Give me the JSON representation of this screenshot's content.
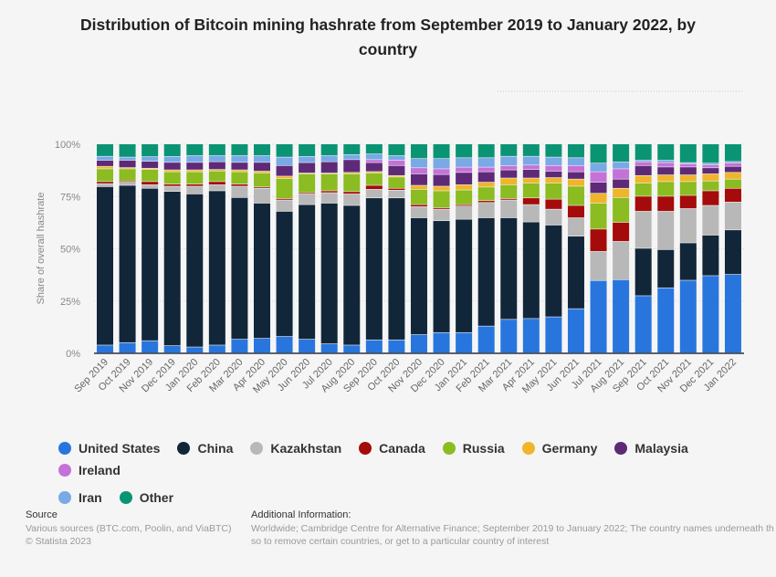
{
  "chart_data": {
    "type": "bar",
    "stacked": true,
    "title": "Distribution of Bitcoin mining hashrate from September 2019 to January 2022, by country",
    "xlabel": "",
    "ylabel": "Share of overall hashrate",
    "ylim": [
      0,
      100
    ],
    "yticks": [
      "0%",
      "25%",
      "50%",
      "75%",
      "100%"
    ],
    "grid": true,
    "legend_position": "bottom",
    "categories": [
      "Sep 2019",
      "Oct 2019",
      "Nov 2019",
      "Dec 2019",
      "Jan 2020",
      "Feb 2020",
      "Mar 2020",
      "Apr 2020",
      "May 2020",
      "Jun 2020",
      "Jul 2020",
      "Aug 2020",
      "Sep 2020",
      "Oct 2020",
      "Nov 2020",
      "Dec 2020",
      "Jan 2021",
      "Feb 2021",
      "Mar 2021",
      "Apr 2021",
      "May 2021",
      "Jun 2021",
      "Jul 2021",
      "Aug 2021",
      "Sep 2021",
      "Oct 2021",
      "Nov 2021",
      "Dec 2021",
      "Jan 2022"
    ],
    "series": [
      {
        "name": "United States",
        "color": "#2876dd",
        "values": [
          3.8,
          5.0,
          5.9,
          3.5,
          2.9,
          3.8,
          6.6,
          7.0,
          7.9,
          6.6,
          4.4,
          3.8,
          6.3,
          6.3,
          8.8,
          9.8,
          9.8,
          12.9,
          16.1,
          16.5,
          17.3,
          21.2,
          34.7,
          35.1,
          27.4,
          31.2,
          34.8,
          37.0,
          37.6
        ]
      },
      {
        "name": "China",
        "color": "#12263a",
        "values": [
          75.8,
          75.2,
          72.9,
          73.8,
          73.2,
          73.8,
          67.8,
          64.7,
          59.9,
          64.4,
          67.3,
          66.8,
          67.9,
          67.9,
          55.9,
          53.5,
          54.2,
          51.8,
          48.6,
          46.2,
          43.9,
          34.7,
          0,
          0,
          22.7,
          18.3,
          17.9,
          19.4,
          21.3
        ]
      },
      {
        "name": "Kazakhstan",
        "color": "#b8b8b8",
        "values": [
          1.4,
          1.5,
          1.7,
          2.5,
          3.7,
          2.9,
          5.4,
          7.1,
          5.4,
          5.1,
          5.0,
          5.5,
          4.1,
          3.7,
          5.3,
          5.5,
          6.3,
          7.3,
          8.5,
          8.3,
          7.6,
          8.8,
          13.9,
          18.3,
          17.7,
          18.3,
          16.4,
          14.2,
          13.3
        ]
      },
      {
        "name": "Canada",
        "color": "#a50b0b",
        "values": [
          1.0,
          0.6,
          1.5,
          1.0,
          1.0,
          1.5,
          1.0,
          0.6,
          0.7,
          0.6,
          0.9,
          1.1,
          1.9,
          0.9,
          1.0,
          0.7,
          0.7,
          0.9,
          0.7,
          3.2,
          4.8,
          5.9,
          10.7,
          9.1,
          7.2,
          7.2,
          6.3,
          7.0,
          6.6
        ]
      },
      {
        "name": "Russia",
        "color": "#8bbc21",
        "values": [
          6.1,
          5.8,
          5.8,
          5.9,
          5.9,
          5.1,
          5.9,
          6.7,
          9.6,
          9.0,
          8.1,
          8.5,
          5.9,
          5.4,
          7.3,
          8.1,
          7.0,
          6.5,
          6.6,
          7.1,
          7.7,
          9.2,
          12.4,
          11.9,
          6.3,
          7.0,
          6.6,
          4.7,
          4.4
        ]
      },
      {
        "name": "Germany",
        "color": "#f0b52a",
        "values": [
          1.2,
          0.6,
          0.6,
          0.9,
          0.9,
          0.7,
          0.9,
          0.9,
          1.1,
          0.4,
          0.4,
          0.7,
          0.7,
          0.7,
          1.9,
          2.2,
          2.5,
          2.3,
          3.2,
          2.4,
          2.6,
          3.4,
          4.7,
          4.4,
          3.6,
          3.2,
          3.2,
          3.4,
          3.2
        ]
      },
      {
        "name": "Malaysia",
        "color": "#5e2a78",
        "values": [
          2.9,
          3.5,
          3.3,
          3.6,
          3.6,
          3.7,
          3.6,
          4.2,
          5.1,
          5.0,
          5.4,
          6.1,
          4.3,
          4.8,
          5.5,
          5.6,
          5.9,
          5.0,
          3.9,
          4.1,
          3.1,
          3.5,
          5.3,
          4.4,
          4.8,
          3.8,
          3.8,
          2.9,
          2.9
        ]
      },
      {
        "name": "Ireland",
        "color": "#c472d8",
        "values": [
          0,
          0,
          0,
          0,
          0,
          0,
          0,
          0,
          0,
          0,
          0,
          0,
          1.4,
          2.5,
          2.9,
          2.7,
          2.5,
          2.2,
          2.0,
          2.1,
          2.7,
          3.0,
          5.0,
          4.9,
          1.8,
          2.1,
          1.5,
          1.4,
          1.7
        ]
      },
      {
        "name": "Iran",
        "color": "#79a9e6",
        "values": [
          1.9,
          1.5,
          2.2,
          2.8,
          3.2,
          2.9,
          3.2,
          3.2,
          4.0,
          2.9,
          2.9,
          2.4,
          2.7,
          2.2,
          4.4,
          4.9,
          4.5,
          4.5,
          4.5,
          4.2,
          4.0,
          3.7,
          4.1,
          3.3,
          0.7,
          1.1,
          0.6,
          0.8,
          0.6
        ]
      },
      {
        "name": "Other",
        "color": "#0b9474",
        "values": [
          5.9,
          6.3,
          6.1,
          6.0,
          5.6,
          5.6,
          5.6,
          5.6,
          6.3,
          6.0,
          5.6,
          5.1,
          4.8,
          5.6,
          7.0,
          7.0,
          6.6,
          6.6,
          5.9,
          5.9,
          6.3,
          6.6,
          9.2,
          8.6,
          7.8,
          7.8,
          8.9,
          9.2,
          8.4
        ]
      }
    ]
  },
  "source": {
    "heading": "Source",
    "line1": "Various sources (BTC.com, Poolin, and ViaBTC)",
    "line2": "© Statista 2023"
  },
  "additional_info": {
    "heading": "Additional Information:",
    "line1": "Worldwide; Cambridge Centre for Alternative Finance; September 2019 to January 2022; The country names underneath th",
    "line2": "so to remove certain countries, or get to a particular country of interest"
  }
}
